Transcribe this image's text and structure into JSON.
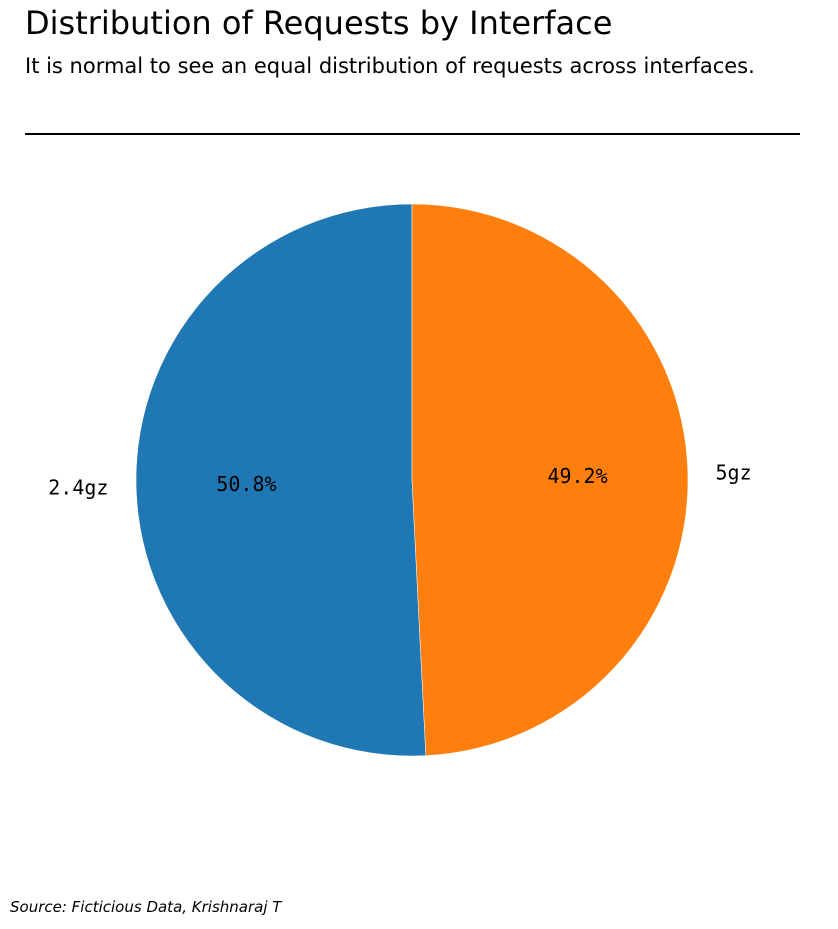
{
  "header": {
    "title": "Distribution of Requests by Interface",
    "subtitle": "It is normal to see an equal distribution of requests across interfaces."
  },
  "footer": {
    "source": "Source: Ficticious Data, Krishnaraj T"
  },
  "chart_data": {
    "type": "pie",
    "categories": [
      "2.4gz",
      "5gz"
    ],
    "values": [
      50.8,
      49.2
    ],
    "value_labels": [
      "50.8%",
      "49.2%"
    ],
    "colors": [
      "#1f77b4",
      "#ff7f0e"
    ],
    "start_angle_deg": 90,
    "direction": "counterclockwise",
    "title": "Distribution of Requests by Interface",
    "subtitle": "It is normal to see an equal distribution of requests across interfaces."
  }
}
